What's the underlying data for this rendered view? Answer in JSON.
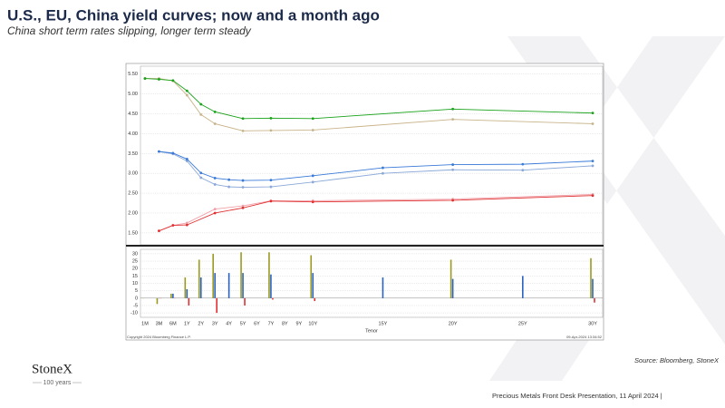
{
  "header": {
    "title": "U.S., EU, China yield curves; now and a month ago",
    "subtitle": "China short term rates slipping, longer term steady"
  },
  "chart_data": [
    {
      "type": "line",
      "ylim": [
        1.2,
        5.7
      ],
      "yticks": [
        {
          "value": 1.5,
          "label": "1.50"
        },
        {
          "value": 2,
          "label": "2.00"
        },
        {
          "value": 2.5,
          "label": "2.50"
        },
        {
          "value": 3,
          "label": "3.00"
        },
        {
          "value": 3.5,
          "label": "3.50"
        },
        {
          "value": 4,
          "label": "4.00"
        },
        {
          "value": 4.5,
          "label": "4.50"
        },
        {
          "value": 5,
          "label": "5.00"
        },
        {
          "value": 5.5,
          "label": "5.50"
        }
      ],
      "grid": true,
      "series": [
        {
          "color": "#c8b48a",
          "x": [
            "1M",
            "3M",
            "6M",
            "1Y",
            "2Y",
            "3Y",
            "5Y",
            "7Y",
            "10Y",
            "20Y",
            "30Y"
          ],
          "values": [
            5.39,
            5.39,
            5.33,
            4.97,
            4.48,
            4.25,
            4.07,
            4.08,
            4.09,
            4.36,
            4.25
          ]
        },
        {
          "color": "#1aa31a",
          "x": [
            "1M",
            "3M",
            "6M",
            "1Y",
            "2Y",
            "3Y",
            "5Y",
            "7Y",
            "10Y",
            "20Y",
            "30Y"
          ],
          "values": [
            5.39,
            5.37,
            5.34,
            5.08,
            4.74,
            4.55,
            4.38,
            4.39,
            4.38,
            4.62,
            4.52
          ]
        },
        {
          "color": "#8aa8d8",
          "x": [
            "3M",
            "6M",
            "1Y",
            "2Y",
            "3Y",
            "4Y",
            "5Y",
            "7Y",
            "10Y",
            "15Y",
            "20Y",
            "25Y",
            "30Y"
          ],
          "values": [
            3.55,
            3.49,
            3.31,
            2.89,
            2.72,
            2.66,
            2.65,
            2.66,
            2.78,
            3.0,
            3.09,
            3.08,
            3.19
          ]
        },
        {
          "color": "#3a7ad8",
          "x": [
            "3M",
            "6M",
            "1Y",
            "2Y",
            "3Y",
            "4Y",
            "5Y",
            "7Y",
            "10Y",
            "15Y",
            "20Y",
            "25Y",
            "30Y"
          ],
          "values": [
            3.55,
            3.51,
            3.36,
            3.01,
            2.88,
            2.84,
            2.82,
            2.83,
            2.94,
            3.14,
            3.22,
            3.23,
            3.31
          ]
        },
        {
          "color": "#f0a0a8",
          "x": [
            "3M",
            "6M",
            "1Y",
            "3Y",
            "5Y",
            "7Y",
            "10Y",
            "20Y",
            "30Y"
          ],
          "values": [
            1.55,
            1.69,
            1.75,
            2.1,
            2.18,
            2.31,
            2.31,
            2.35,
            2.47
          ]
        },
        {
          "color": "#e03030",
          "x": [
            "3M",
            "6M",
            "1Y",
            "3Y",
            "5Y",
            "7Y",
            "10Y",
            "20Y",
            "30Y"
          ],
          "values": [
            1.55,
            1.69,
            1.7,
            2.0,
            2.13,
            2.3,
            2.28,
            2.32,
            2.44
          ]
        }
      ]
    },
    {
      "type": "bar",
      "x_label": "Tenor",
      "ylim": [
        -13,
        33
      ],
      "yticks": [
        -10,
        -5,
        0,
        5,
        10,
        15,
        20,
        25,
        30
      ],
      "grid": true,
      "categories": [
        "1M",
        "3M",
        "6M",
        "1Y",
        "2Y",
        "3Y",
        "4Y",
        "5Y",
        "6Y",
        "7Y",
        "8Y",
        "9Y",
        "10Y",
        "15Y",
        "20Y",
        "25Y",
        "30Y"
      ],
      "series": [
        {
          "color": "#9a9a20",
          "values": [
            0,
            -4,
            3,
            14,
            26,
            30,
            null,
            31,
            null,
            31,
            null,
            null,
            29,
            null,
            26,
            null,
            27
          ]
        },
        {
          "color": "#2a62c0",
          "values": [
            null,
            0,
            3,
            6,
            14,
            17,
            17,
            17,
            null,
            16,
            null,
            null,
            17,
            14,
            13,
            15,
            13
          ]
        },
        {
          "color": "#e03030",
          "values": [
            null,
            0,
            0,
            -5,
            null,
            -10,
            null,
            -5,
            null,
            -1,
            null,
            null,
            -2,
            null,
            null,
            null,
            -3
          ]
        }
      ]
    }
  ],
  "footer": {
    "copyright": "Copyright 2024 Bloomberg Finance L.P.",
    "timestamp": "09-Apr-2024 13:34:52",
    "source": "Source: Bloomberg, StoneX",
    "brand": "StoneX",
    "tagline": "100 years",
    "presentation": "Precious Metals Front Desk Presentation, 11 April 2024 |"
  }
}
